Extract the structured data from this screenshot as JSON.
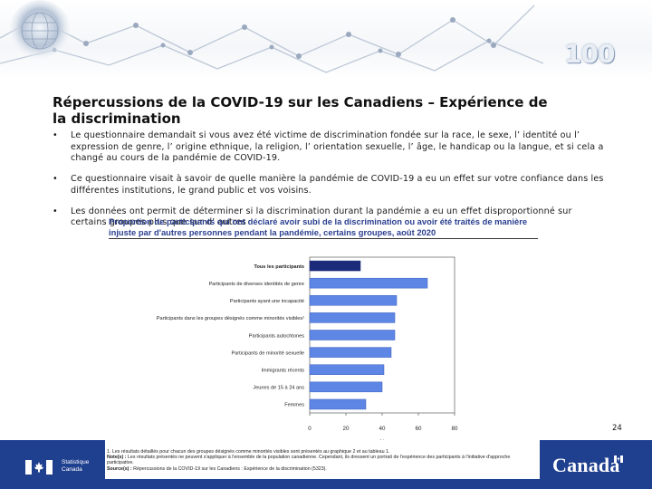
{
  "slide": {
    "title": "Répercussions de la COVID-19 sur les Canadiens – Expérience de la discrimination",
    "bullets": [
      "Le questionnaire demandait si vous avez été victime de discrimination fondée sur la race, le sexe, l’ identité ou l’ expression de genre, l’ origine ethnique, la religion, l’ orientation sexuelle, l’ âge, le handicap ou la langue, et si cela a changé au cours de la pandémie de COVID-19.",
      "Ce questionnaire visait à savoir de quelle manière la pandémie de COVID-19 a eu un effet sur votre confiance dans les différentes institutions, le grand public et vos voisins.",
      "Les données ont permit de déterminer si la discrimination durant la pandémie a eu un effet disproportionné sur certains groupes plus que sur d’ autres"
    ],
    "bullet_glyph": "•",
    "page_number": "24",
    "banner_badge": "100"
  },
  "chart_data": {
    "type": "bar",
    "orientation": "horizontal",
    "title": "Proportion de participants qui ont déclaré avoir subi de la discrimination ou avoir été traités de manière injuste par d'autres personnes pendant la pandémie, certains groupes, août 2020",
    "categories": [
      "Tous les participants",
      "Participants de diverses identités de genre",
      "Participants ayant une incapacité",
      "Participants dans les groupes désignés comme minorités visibles¹",
      "Participants autochtones",
      "Participants de minorité sexuelle",
      "Immigrants récents",
      "Jeunes de 15 à 24 ans",
      "Femmes"
    ],
    "values": [
      28,
      65,
      48,
      47,
      47,
      45,
      41,
      40,
      31
    ],
    "highlight_index": 0,
    "xlabel": "%",
    "xlim": [
      0,
      80
    ],
    "xticks": [
      0,
      20,
      40,
      60,
      80
    ],
    "grid": false,
    "colors": {
      "highlight": "#1c2a7a",
      "bar": "#5e86e4",
      "bar_edge": "#3a5fc0"
    }
  },
  "footnotes": {
    "note1": "1. Les résultats détaillés pour chacun des groupes désignés comme minorités visibles sont présentés au graphique 2 et au tableau 1.",
    "note2_label": "Note(s) :",
    "note2": " Les résultats présentés ne peuvent s'appliquer à l'ensemble de la population canadienne. Cependant, ils dressent un portrait de l'expérience des participants à l'initiative d'approche participative.",
    "source_label": "Source(s) :",
    "source": " Répercussions de la COVID-19 sur les Canadiens : Expérience de la discrimination (5323)."
  },
  "footer": {
    "agency_line1": "Statistique",
    "agency_line2": "Canada",
    "wordmark": "Canada",
    "bg_color": "#1f3f8f"
  }
}
